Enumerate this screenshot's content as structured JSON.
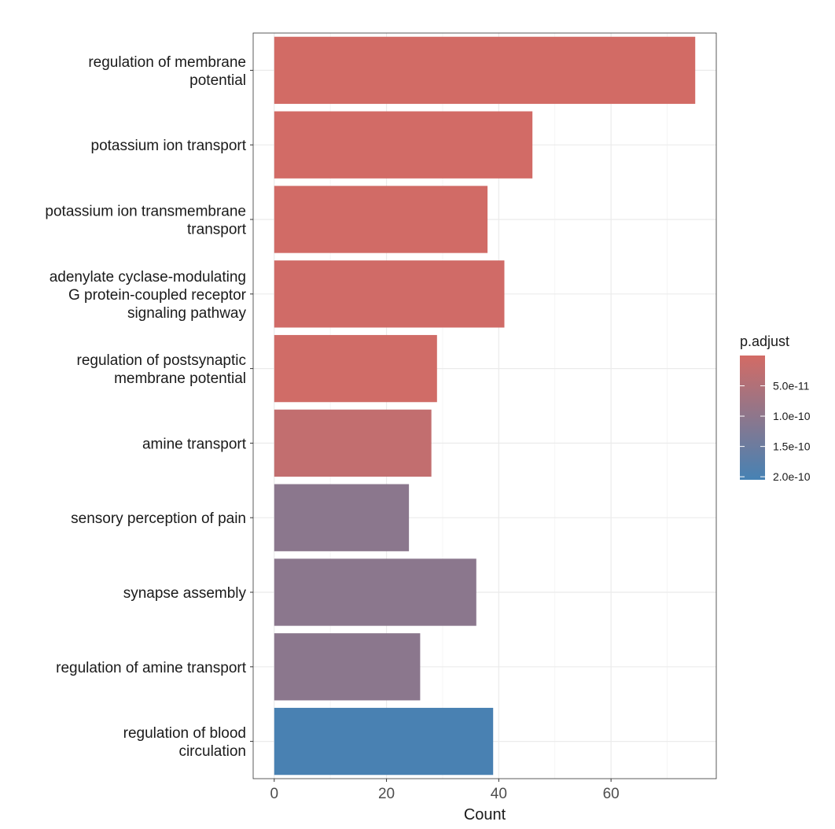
{
  "chart_data": {
    "type": "bar",
    "orientation": "horizontal",
    "title": "",
    "xlabel": "Count",
    "ylabel": "",
    "xlim": [
      -3.75,
      78.75
    ],
    "xticks": [
      0,
      20,
      40,
      60
    ],
    "grid": true,
    "categories": [
      [
        "regulation of membrane",
        "potential"
      ],
      [
        "potassium ion transport"
      ],
      [
        "potassium ion transmembrane",
        "transport"
      ],
      [
        "adenylate cyclase-modulating",
        "G protein-coupled receptor",
        "signaling pathway"
      ],
      [
        "regulation of postsynaptic",
        "membrane potential"
      ],
      [
        "amine transport"
      ],
      [
        "sensory perception of pain"
      ],
      [
        "synapse assembly"
      ],
      [
        "regulation of amine transport"
      ],
      [
        "regulation of blood",
        "circulation"
      ]
    ],
    "values": [
      75,
      46,
      38,
      41,
      29,
      28,
      24,
      36,
      26,
      39
    ],
    "p_adjust": [
      1e-12,
      2e-12,
      3e-12,
      4e-12,
      5e-12,
      2.5e-11,
      1.05e-10,
      1.05e-10,
      1.05e-10,
      2e-10
    ],
    "legend": {
      "title": "p.adjust",
      "position": "right",
      "range": [
        0,
        2.05e-10
      ],
      "ticks": [
        5e-11,
        1e-10,
        1.5e-10,
        2e-10
      ],
      "tick_labels": [
        "5.0e-11",
        "1.0e-10",
        "1.5e-10",
        "2.0e-10"
      ],
      "low_color": "#D36B65",
      "high_color": "#4682B4"
    }
  }
}
